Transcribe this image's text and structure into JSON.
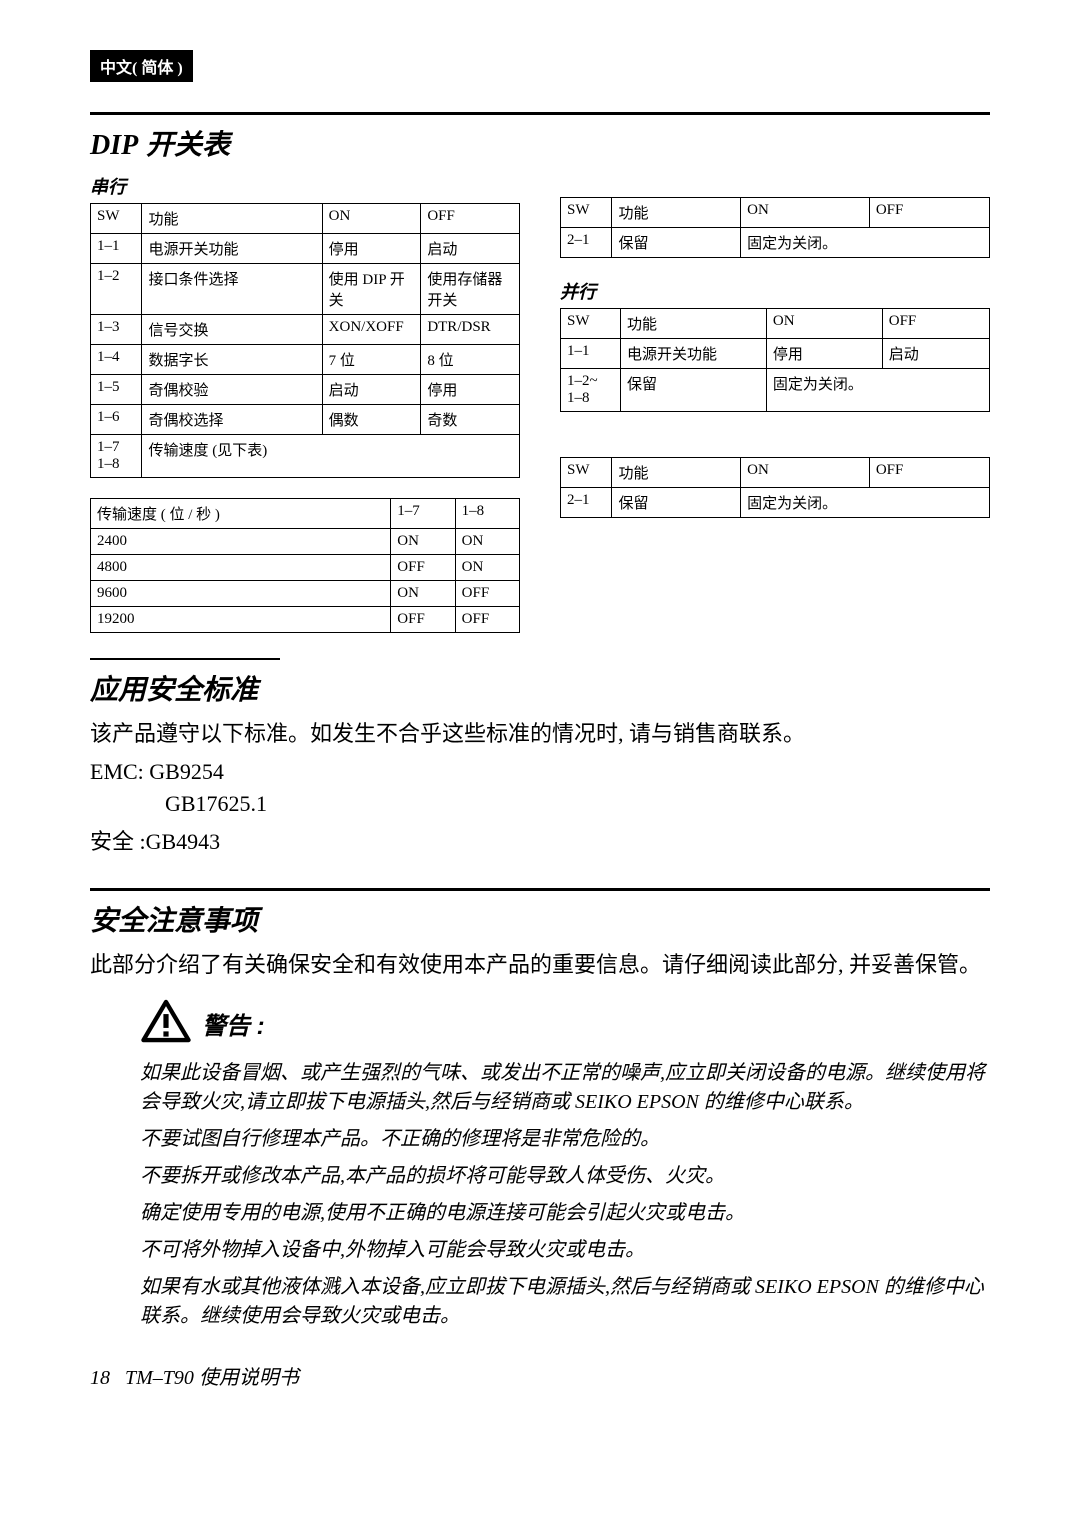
{
  "lang_badge": "中文( 简体 )",
  "sections": {
    "dip": {
      "title_latin": "DIP",
      "title_cn": " 开关表",
      "serial_label": "串行",
      "parallel_label": "并行"
    },
    "safety_std": {
      "title": "应用安全标准",
      "body": "该产品遵守以下标准。如发生不合乎这些标准的情况时, 请与销售商联系。",
      "emc_label": "EMC:",
      "emc_value": "GB9254",
      "emc_value2": "GB17625.1",
      "safety_label": "安全 :",
      "safety_value": "GB4943"
    },
    "precautions": {
      "title": "安全注意事项",
      "intro": "此部分介绍了有关确保安全和有效使用本产品的重要信息。请仔细阅读此部分, 并妥善保管。",
      "warn_label": "警告 :",
      "warnings": [
        "如果此设备冒烟、或产生强烈的气味、或发出不正常的噪声,应立即关闭设备的电源。继续使用将会导致火灾,请立即拔下电源插头,然后与经销商或 SEIKO EPSON 的维修中心联系。",
        "不要试图自行修理本产品。不正确的修理将是非常危险的。",
        "不要拆开或修改本产品,本产品的损坏将可能导致人体受伤、火灾。",
        "确定使用专用的电源,使用不正确的电源连接可能会引起火灾或电击。",
        "不可将外物掉入设备中,外物掉入可能会导致火灾或电击。",
        "如果有水或其他液体溅入本设备,应立即拔下电源插头,然后与经销商或 SEIKO EPSON 的维修中心联系。继续使用会导致火灾或电击。"
      ]
    }
  },
  "tables": {
    "serial_sw1": {
      "headers": [
        "SW",
        "功能",
        "ON",
        "OFF"
      ],
      "rows": [
        [
          "1–1",
          "电源开关功能",
          "停用",
          "启动"
        ],
        [
          "1–2",
          "接口条件选择",
          "使用 DIP 开关",
          "使用存储器开关"
        ],
        [
          "1–3",
          "信号交换",
          "XON/XOFF",
          "DTR/DSR"
        ],
        [
          "1–4",
          "数据字长",
          "7 位",
          "8 位"
        ],
        [
          "1–5",
          "奇偶校验",
          "启动",
          "停用"
        ],
        [
          "1–6",
          "奇偶校选择",
          "偶数",
          "奇数"
        ],
        [
          "1–7\n1–8",
          "传输速度 (见下表)",
          "",
          ""
        ]
      ],
      "col_widths": [
        "12%",
        "42%",
        "23%",
        "23%"
      ]
    },
    "baud": {
      "headers": [
        "传输速度 ( 位 / 秒 )",
        "1–7",
        "1–8"
      ],
      "rows": [
        [
          "2400",
          "ON",
          "ON"
        ],
        [
          "4800",
          "OFF",
          "ON"
        ],
        [
          "9600",
          "ON",
          "OFF"
        ],
        [
          "19200",
          "OFF",
          "OFF"
        ]
      ],
      "col_widths": [
        "70%",
        "15%",
        "15%"
      ]
    },
    "serial_sw2": {
      "headers": [
        "SW",
        "功能",
        "ON",
        "OFF"
      ],
      "rows": [
        [
          "2–1",
          "保留",
          "固定为关闭。",
          ""
        ]
      ],
      "col_widths": [
        "12%",
        "30%",
        "30%",
        "28%"
      ]
    },
    "parallel_sw1": {
      "headers": [
        "SW",
        "功能",
        "ON",
        "OFF"
      ],
      "rows": [
        [
          "1–1",
          "电源开关功能",
          "停用",
          "启动"
        ],
        [
          "1–2~\n1–8",
          "保留",
          "固定为关闭。",
          ""
        ]
      ],
      "col_widths": [
        "14%",
        "34%",
        "27%",
        "25%"
      ]
    },
    "parallel_sw2": {
      "headers": [
        "SW",
        "功能",
        "ON",
        "OFF"
      ],
      "rows": [
        [
          "2–1",
          "保留",
          "固定为关闭。",
          ""
        ]
      ],
      "col_widths": [
        "12%",
        "30%",
        "30%",
        "28%"
      ]
    }
  },
  "footer": {
    "page": "18",
    "model": "TM–T90 使用说明书"
  }
}
